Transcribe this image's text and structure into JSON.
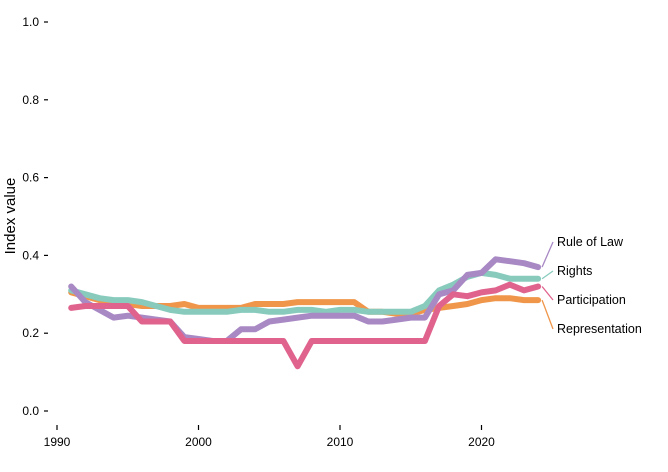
{
  "chart_data": {
    "type": "line",
    "title": "",
    "xlabel": "",
    "ylabel": "Index value",
    "xlim": [
      1990,
      2031
    ],
    "ylim": [
      0,
      1
    ],
    "x_ticks": [
      1990,
      2000,
      2010,
      2020
    ],
    "y_ticks": [
      0.0,
      0.2,
      0.4,
      0.6,
      0.8,
      1.0
    ],
    "y_tick_labels": [
      "0.0",
      "0.2",
      "0.4",
      "0.6",
      "0.8",
      "1.0"
    ],
    "grid": false,
    "legend": "direct labels at right end of lines",
    "x": [
      1991,
      1992,
      1993,
      1994,
      1995,
      1996,
      1997,
      1998,
      1999,
      2000,
      2001,
      2002,
      2003,
      2004,
      2005,
      2006,
      2007,
      2008,
      2009,
      2010,
      2011,
      2012,
      2013,
      2014,
      2015,
      2016,
      2017,
      2018,
      2019,
      2020,
      2021,
      2022,
      2023,
      2024
    ],
    "series": [
      {
        "name": "Rule of Law",
        "color": "#a889c4",
        "values": [
          0.32,
          0.28,
          0.26,
          0.24,
          0.245,
          0.24,
          0.235,
          0.23,
          0.19,
          0.185,
          0.18,
          0.18,
          0.21,
          0.21,
          0.23,
          0.235,
          0.24,
          0.245,
          0.245,
          0.245,
          0.245,
          0.23,
          0.23,
          0.235,
          0.24,
          0.24,
          0.3,
          0.31,
          0.35,
          0.355,
          0.39,
          0.385,
          0.38,
          0.37
        ]
      },
      {
        "name": "Rights",
        "color": "#88cbbd",
        "values": [
          0.31,
          0.3,
          0.29,
          0.285,
          0.285,
          0.28,
          0.27,
          0.26,
          0.255,
          0.255,
          0.255,
          0.255,
          0.26,
          0.26,
          0.255,
          0.255,
          0.26,
          0.26,
          0.255,
          0.26,
          0.26,
          0.255,
          0.255,
          0.255,
          0.255,
          0.27,
          0.31,
          0.325,
          0.345,
          0.355,
          0.35,
          0.34,
          0.34,
          0.34
        ]
      },
      {
        "name": "Participation",
        "color": "#e0638e",
        "values": [
          0.265,
          0.27,
          0.27,
          0.27,
          0.27,
          0.23,
          0.23,
          0.23,
          0.18,
          0.18,
          0.18,
          0.18,
          0.18,
          0.18,
          0.18,
          0.18,
          0.115,
          0.18,
          0.18,
          0.18,
          0.18,
          0.18,
          0.18,
          0.18,
          0.18,
          0.18,
          0.27,
          0.3,
          0.295,
          0.305,
          0.31,
          0.325,
          0.31,
          0.32
        ]
      },
      {
        "name": "Representation",
        "color": "#f0964a",
        "values": [
          0.305,
          0.295,
          0.285,
          0.28,
          0.275,
          0.27,
          0.27,
          0.27,
          0.275,
          0.265,
          0.265,
          0.265,
          0.265,
          0.275,
          0.275,
          0.275,
          0.28,
          0.28,
          0.28,
          0.28,
          0.28,
          0.255,
          0.255,
          0.25,
          0.25,
          0.26,
          0.265,
          0.27,
          0.275,
          0.285,
          0.29,
          0.29,
          0.285,
          0.285
        ]
      }
    ],
    "series_label_text": [
      "Rule of Law",
      "Rights",
      "Participation",
      "Representation"
    ]
  }
}
